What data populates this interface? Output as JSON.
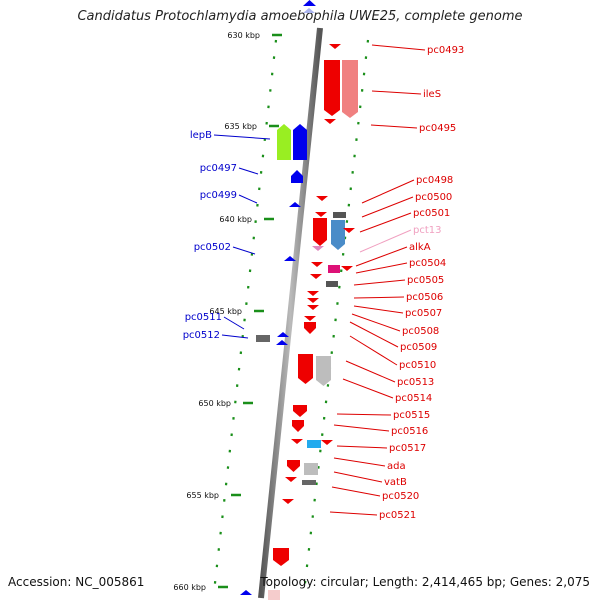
{
  "title": "Candidatus Protochlamydia amoebophila UWE25, complete genome",
  "footer": {
    "accession": "Accession: NC_005861",
    "summary": "Topology: circular; Length: 2,414,465 bp; Genes: 2,075"
  },
  "axis_ticks": [
    {
      "label": "630 kbp"
    },
    {
      "label": "635 kbp"
    },
    {
      "label": "640 kbp"
    },
    {
      "label": "645 kbp"
    },
    {
      "label": "650 kbp"
    },
    {
      "label": "655 kbp"
    },
    {
      "label": "660 kbp"
    }
  ],
  "genes_left": [
    {
      "label": "lepB",
      "color": "#0000cc"
    },
    {
      "label": "pc0497",
      "color": "#0000cc"
    },
    {
      "label": "pc0499",
      "color": "#0000cc"
    },
    {
      "label": "pc0502",
      "color": "#0000cc"
    },
    {
      "label": "pc0511",
      "color": "#0000cc"
    },
    {
      "label": "pc0512",
      "color": "#0000cc"
    }
  ],
  "genes_right": [
    {
      "label": "pc0493",
      "color": "#dd0000"
    },
    {
      "label": "ileS",
      "color": "#dd0000"
    },
    {
      "label": "pc0495",
      "color": "#dd0000"
    },
    {
      "label": "pc0498",
      "color": "#dd0000"
    },
    {
      "label": "pc0500",
      "color": "#dd0000"
    },
    {
      "label": "pc0501",
      "color": "#dd0000"
    },
    {
      "label": "pct13",
      "color": "#f0a0c0"
    },
    {
      "label": "alkA",
      "color": "#dd0000"
    },
    {
      "label": "pc0504",
      "color": "#dd0000"
    },
    {
      "label": "pc0505",
      "color": "#dd0000"
    },
    {
      "label": "pc0506",
      "color": "#dd0000"
    },
    {
      "label": "pc0507",
      "color": "#dd0000"
    },
    {
      "label": "pc0508",
      "color": "#dd0000"
    },
    {
      "label": "pc0509",
      "color": "#dd0000"
    },
    {
      "label": "pc0510",
      "color": "#dd0000"
    },
    {
      "label": "pc0513",
      "color": "#dd0000"
    },
    {
      "label": "pc0514",
      "color": "#dd0000"
    },
    {
      "label": "pc0515",
      "color": "#dd0000"
    },
    {
      "label": "pc0516",
      "color": "#dd0000"
    },
    {
      "label": "pc0517",
      "color": "#dd0000"
    },
    {
      "label": "ada",
      "color": "#dd0000"
    },
    {
      "label": "vatB",
      "color": "#dd0000"
    },
    {
      "label": "pc0520",
      "color": "#dd0000"
    },
    {
      "label": "pc0521",
      "color": "#dd0000"
    }
  ]
}
